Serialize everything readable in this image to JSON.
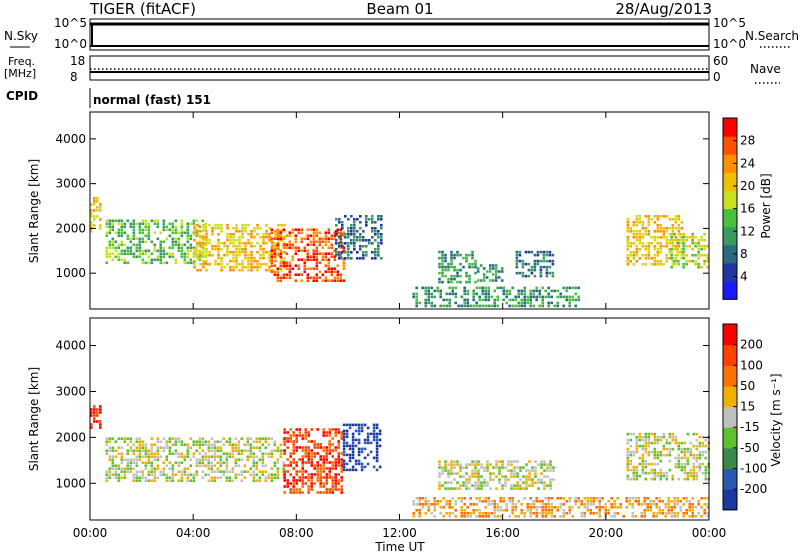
{
  "header": {
    "radar": "TIGER (fitACF)",
    "beam": "Beam 01",
    "date": "28/Aug/2013"
  },
  "status_panels": {
    "nsky": {
      "label": "N.Sky",
      "ticks": [
        "10^5",
        "10^0"
      ]
    },
    "nsearch": {
      "label": "N.Search",
      "ticks": [
        "10^5",
        "10^0"
      ]
    },
    "freq": {
      "label_top": "Freq.",
      "label_bottom": "[MHz]",
      "ticks": [
        "18",
        "8"
      ]
    },
    "nave": {
      "label": "Nave",
      "ticks": [
        "60",
        "0"
      ]
    },
    "cpid": {
      "label": "CPID",
      "value": "normal (fast) 151"
    }
  },
  "chart_data": [
    {
      "type": "heatmap",
      "panel": "power",
      "ylabel": "Slant Range [km]",
      "xlabel": "Time UT",
      "x_ticks": [
        "00:00",
        "04:00",
        "08:00",
        "12:00",
        "16:00",
        "20:00",
        "00:00"
      ],
      "xlim": [
        0,
        24
      ],
      "y_ticks": [
        1000,
        2000,
        3000,
        4000
      ],
      "ylim": [
        200,
        4600
      ],
      "colorbar": {
        "label": "Power [dB]",
        "ticks": [
          "28",
          "24",
          "20",
          "16",
          "12",
          "8",
          "4"
        ],
        "colors": [
          "#1a1aff",
          "#2236a0",
          "#2a6a80",
          "#3a9a60",
          "#48c040",
          "#c8e020",
          "#f0c000",
          "#ff9000",
          "#ff5000",
          "#ff0000"
        ]
      },
      "regions": [
        {
          "t_start": 0.0,
          "t_end": 0.4,
          "r_min": 1900,
          "r_max": 2700,
          "level": 6
        },
        {
          "t_start": 0.6,
          "t_end": 4.5,
          "r_min": 1200,
          "r_max": 2200,
          "level": 4
        },
        {
          "t_start": 4.0,
          "t_end": 7.5,
          "r_min": 1050,
          "r_max": 2100,
          "level": 6
        },
        {
          "t_start": 7.0,
          "t_end": 9.8,
          "r_min": 800,
          "r_max": 2000,
          "level": 8
        },
        {
          "t_start": 9.5,
          "t_end": 11.3,
          "r_min": 1300,
          "r_max": 2300,
          "level": 2
        },
        {
          "t_start": 13.5,
          "t_end": 15.0,
          "r_min": 800,
          "r_max": 1500,
          "level": 3
        },
        {
          "t_start": 15.0,
          "t_end": 16.0,
          "r_min": 800,
          "r_max": 1200,
          "level": 3
        },
        {
          "t_start": 16.5,
          "t_end": 18.0,
          "r_min": 900,
          "r_max": 1500,
          "level": 2
        },
        {
          "t_start": 12.5,
          "t_end": 19.0,
          "r_min": 250,
          "r_max": 700,
          "level": 3
        },
        {
          "t_start": 20.8,
          "t_end": 23.0,
          "r_min": 1200,
          "r_max": 2300,
          "level": 6
        },
        {
          "t_start": 22.5,
          "t_end": 24.0,
          "r_min": 1100,
          "r_max": 1900,
          "level": 5
        }
      ]
    },
    {
      "type": "heatmap",
      "panel": "velocity",
      "ylabel": "Slant Range [km]",
      "xlabel": "Time UT",
      "x_ticks": [
        "00:00",
        "04:00",
        "08:00",
        "12:00",
        "16:00",
        "20:00",
        "00:00"
      ],
      "xlim": [
        0,
        24
      ],
      "y_ticks": [
        1000,
        2000,
        3000,
        4000
      ],
      "ylim": [
        200,
        4600
      ],
      "colorbar": {
        "label": "Velocity [m s⁻¹]",
        "ticks": [
          "200",
          "100",
          "50",
          "15",
          "-15",
          "-50",
          "-100",
          "-200"
        ],
        "colors": [
          "#1a3aa0",
          "#2a5ab0",
          "#3a8a50",
          "#60c030",
          "#c0c0c0",
          "#f0b000",
          "#ff7000",
          "#ff4000",
          "#ff0000"
        ]
      },
      "regions": [
        {
          "t_start": 0.0,
          "t_end": 0.4,
          "r_min": 2200,
          "r_max": 2700,
          "level": 8
        },
        {
          "t_start": 0.6,
          "t_end": 7.5,
          "r_min": 1050,
          "r_max": 2000,
          "level": 4
        },
        {
          "t_start": 7.5,
          "t_end": 9.8,
          "r_min": 800,
          "r_max": 2200,
          "level": 7
        },
        {
          "t_start": 9.8,
          "t_end": 11.3,
          "r_min": 1300,
          "r_max": 2300,
          "level": 0
        },
        {
          "t_start": 13.5,
          "t_end": 18.0,
          "r_min": 850,
          "r_max": 1500,
          "level": 4
        },
        {
          "t_start": 12.5,
          "t_end": 24.0,
          "r_min": 250,
          "r_max": 700,
          "level": 5
        },
        {
          "t_start": 20.8,
          "t_end": 24.0,
          "r_min": 1100,
          "r_max": 2100,
          "level": 4
        }
      ]
    }
  ]
}
